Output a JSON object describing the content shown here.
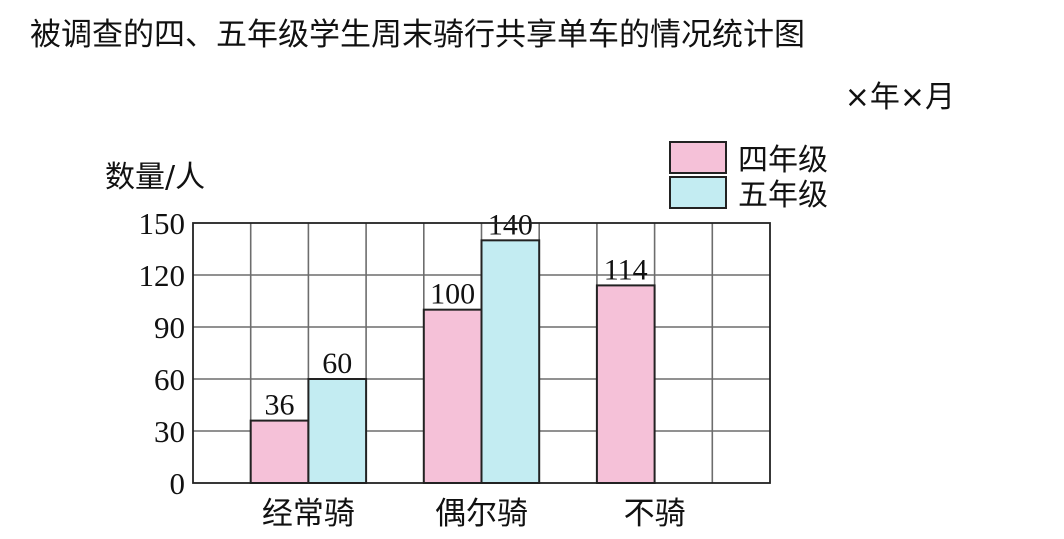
{
  "chart_data": {
    "type": "bar",
    "title": "被调查的四、五年级学生周末骑行共享单车的情况统计图",
    "date_note": "×年×月",
    "ylabel": "数量/人",
    "xlabel": "",
    "categories": [
      "经常骑",
      "偶尔骑",
      "不骑"
    ],
    "series": [
      {
        "name": "四年级",
        "values": [
          36,
          100,
          114
        ],
        "color": "#f5c1d8"
      },
      {
        "name": "五年级",
        "values": [
          60,
          140,
          null
        ],
        "color": "#c3ecf2"
      }
    ],
    "ylim": [
      0,
      150
    ],
    "yticks": [
      0,
      30,
      60,
      90,
      120,
      150
    ],
    "grid": true,
    "legend_position": "top-right"
  }
}
